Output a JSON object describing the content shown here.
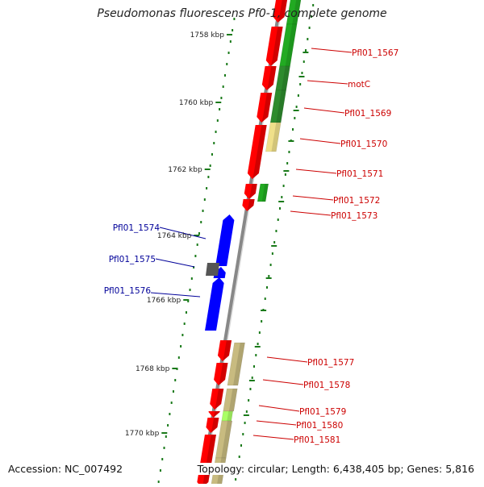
{
  "title": "Pseudomonas fluorescens Pf0-1, complete genome",
  "accession": "Accession: NC_007492",
  "topology": "Topology: circular; Length: 6,438,405 bp; Genes: 5,816",
  "ruler": [
    {
      "label": "1758 kbp"
    },
    {
      "label": "1760 kbp"
    },
    {
      "label": "1762 kbp"
    },
    {
      "label": "1764 kbp"
    },
    {
      "label": "1766 kbp"
    },
    {
      "label": "1768 kbp"
    },
    {
      "label": "1770 kbp"
    }
  ],
  "genes_forward": [
    {
      "label": "Pfl01_1567"
    },
    {
      "label": "motC"
    },
    {
      "label": "Pfl01_1569"
    },
    {
      "label": "Pfl01_1570"
    },
    {
      "label": "Pfl01_1571"
    },
    {
      "label": "Pfl01_1572"
    },
    {
      "label": "Pfl01_1573"
    },
    {
      "label": "Pfl01_1577"
    },
    {
      "label": "Pfl01_1578"
    },
    {
      "label": "Pfl01_1579"
    },
    {
      "label": "Pfl01_1580"
    },
    {
      "label": "Pfl01_1581"
    }
  ],
  "genes_reverse": [
    {
      "label": "Pfl01_1574"
    },
    {
      "label": "Pfl01_1575"
    },
    {
      "label": "Pfl01_1576"
    }
  ],
  "colors": {
    "forward_gene": "#ff0000",
    "reverse_gene": "#0000ff",
    "forward_label": "#cc0000",
    "reverse_label": "#000099",
    "ruler": "#1a7a1a",
    "backbone": "#888888",
    "cog_green": "#22aa22",
    "cog_dark_green": "#2e8b2e",
    "cog_yellow": "#f0e08a",
    "cog_khaki": "#c8bb80",
    "cog_light_green": "#aaff66",
    "gray_gene": "#555555"
  }
}
